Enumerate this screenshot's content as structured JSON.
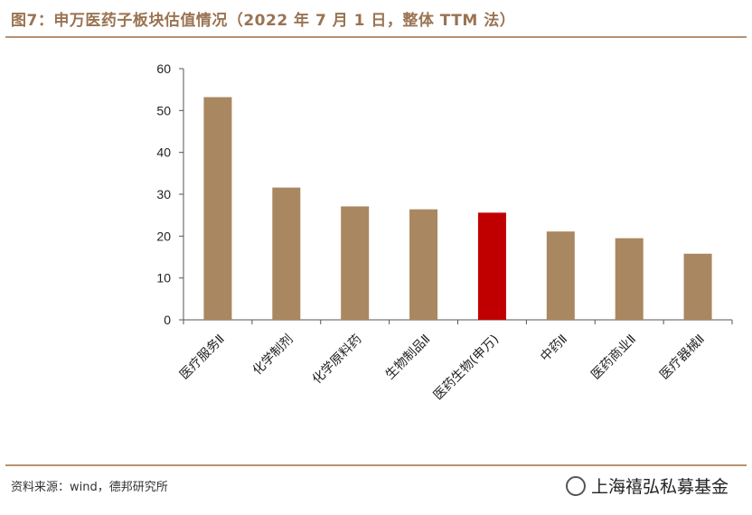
{
  "header": {
    "title": "图7：申万医药子板块估值情况（2022 年 7 月 1 日，整体 TTM 法）"
  },
  "footer": {
    "source": "资料来源：wind，德邦研究所",
    "watermark": "上海禧弘私募基金"
  },
  "colors": {
    "bar_default": "#a98760",
    "bar_highlight": "#c00000",
    "axis": "#555555"
  },
  "chart_data": {
    "type": "bar",
    "categories": [
      "医疗服务Ⅱ",
      "化学制剂",
      "化学原料药",
      "生物制品Ⅱ",
      "医药生物(申万)",
      "中药Ⅱ",
      "医药商业Ⅱ",
      "医疗器械Ⅱ"
    ],
    "values": [
      53.2,
      31.6,
      27.1,
      26.4,
      25.6,
      21.1,
      19.5,
      15.8
    ],
    "highlight_index": 4,
    "ylim": [
      0,
      60
    ],
    "yticks": [
      0,
      10,
      20,
      30,
      40,
      50,
      60
    ],
    "ytick_labels": [
      "0",
      "10",
      "20",
      "30",
      "40",
      "50",
      "60"
    ],
    "title": "",
    "xlabel": "",
    "ylabel": "",
    "grid": false,
    "legend": "none"
  }
}
